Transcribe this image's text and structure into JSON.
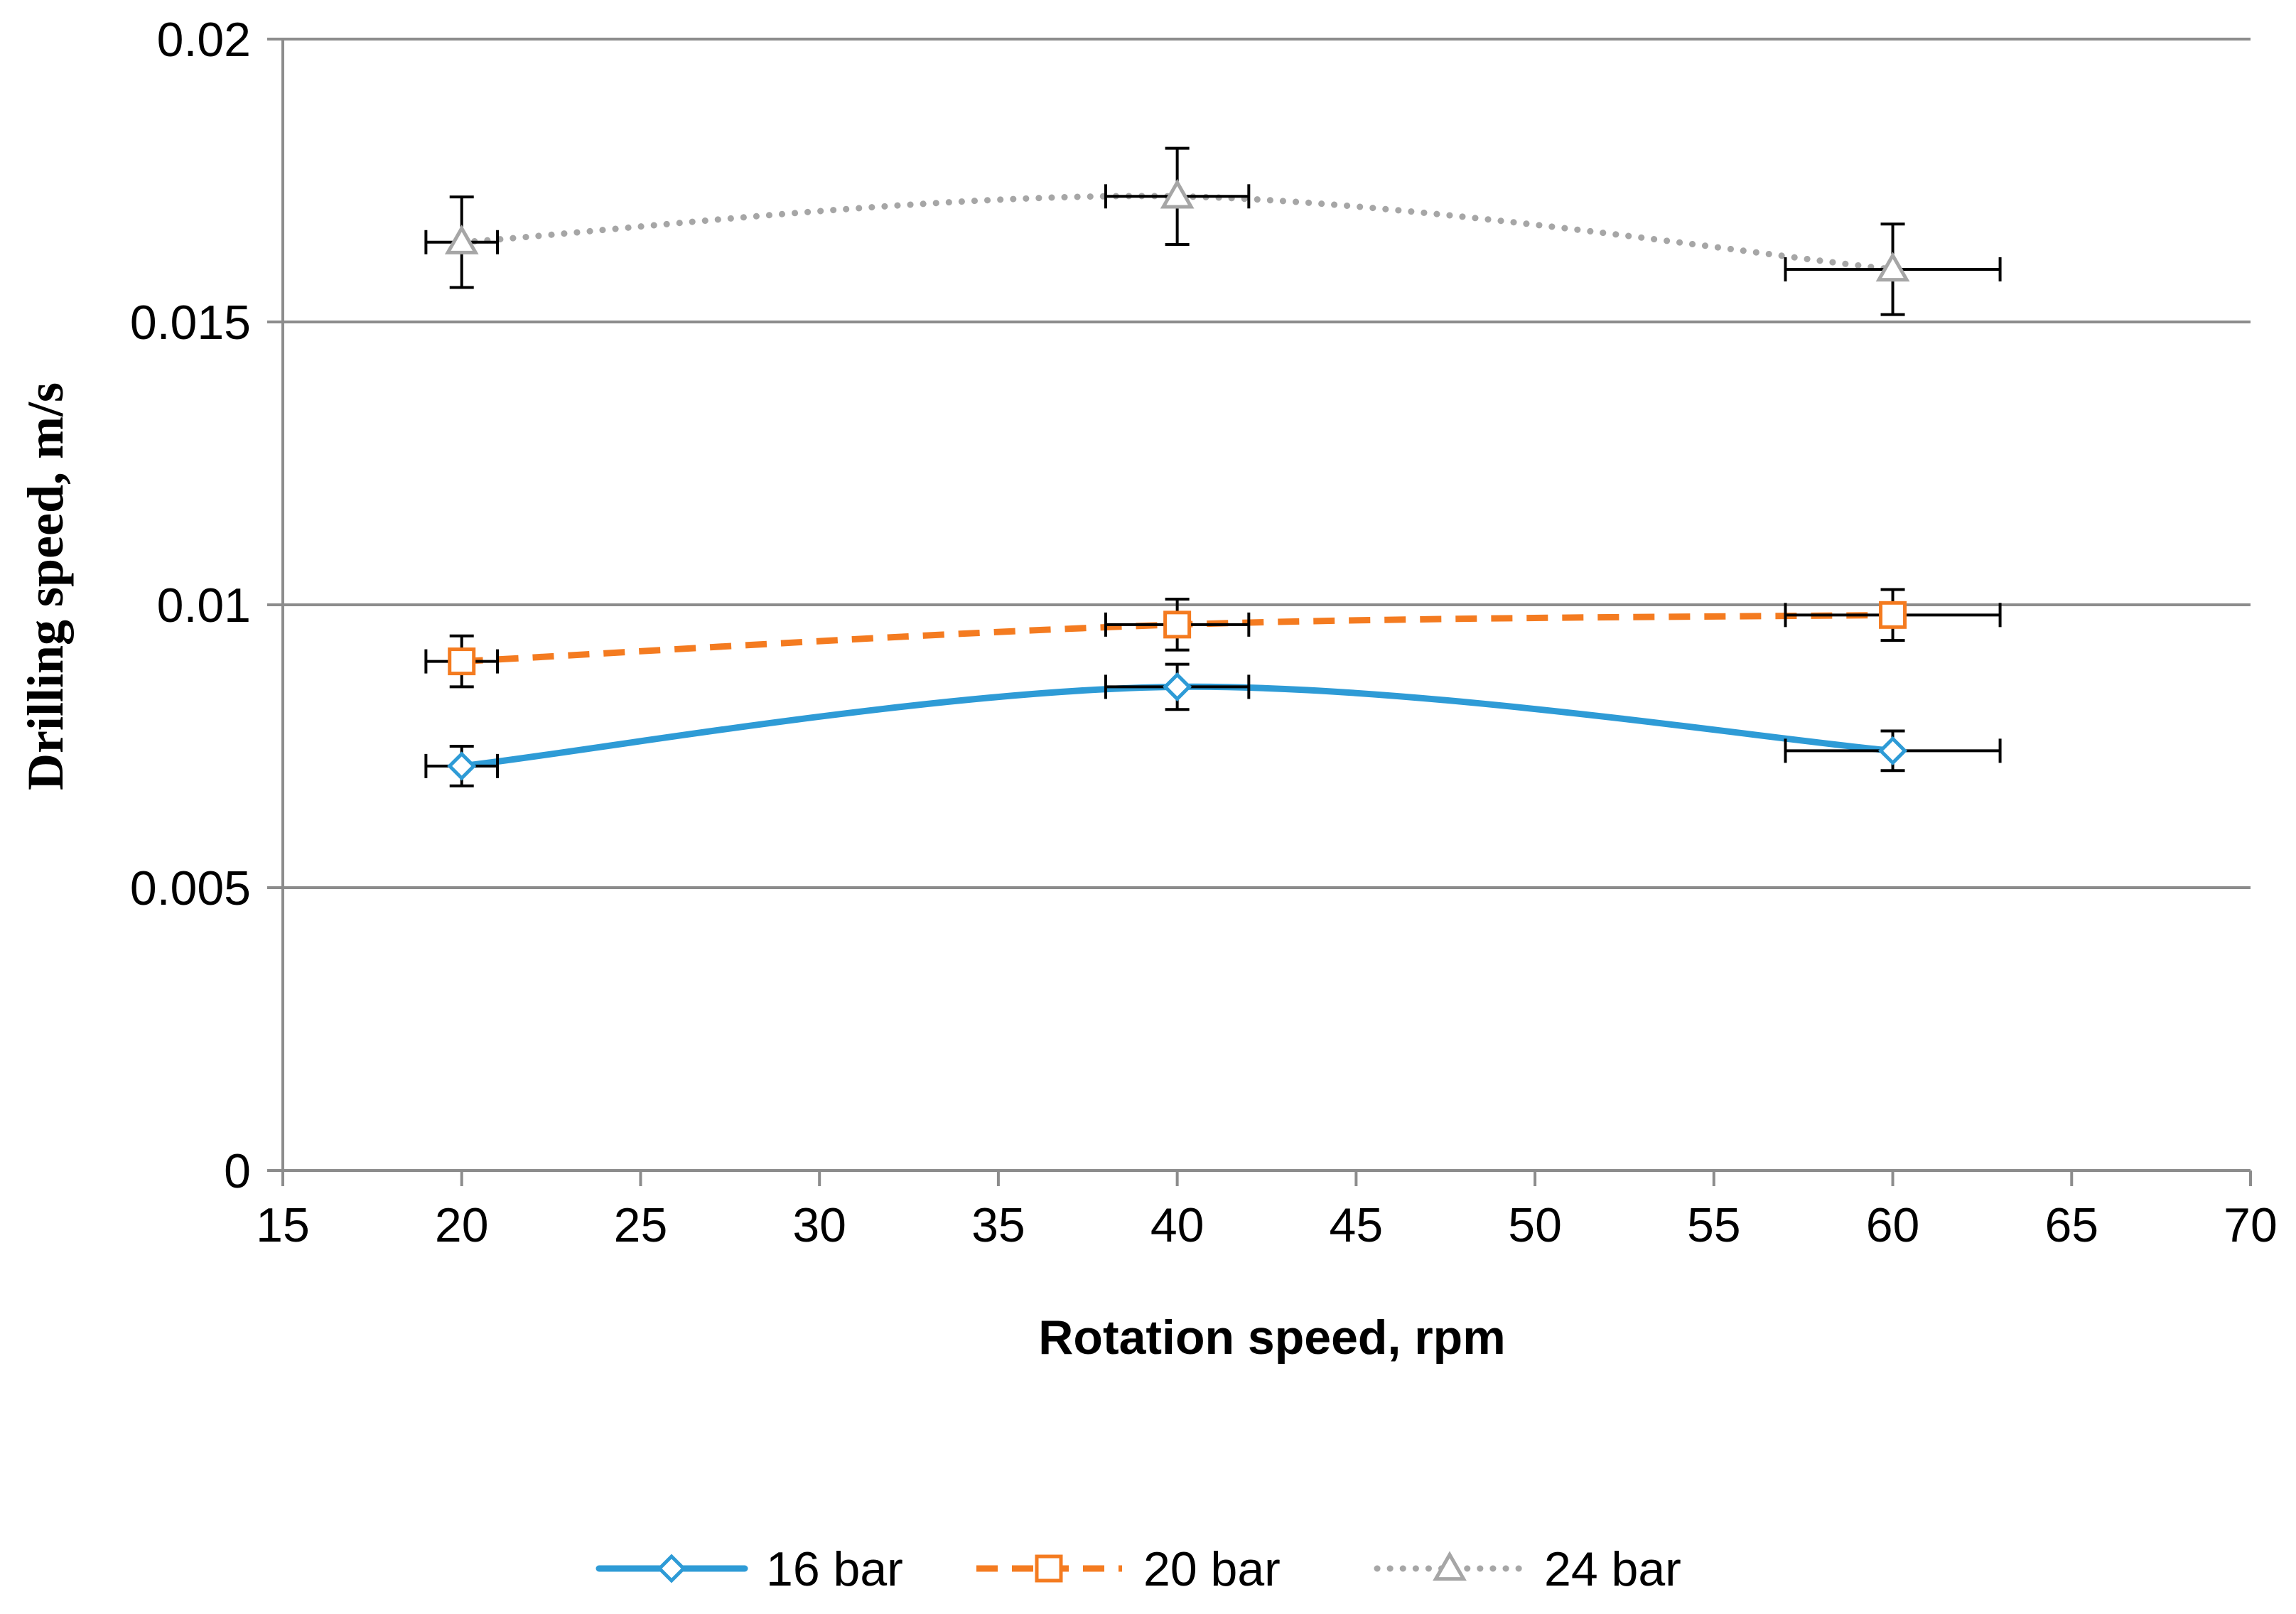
{
  "chart_data": {
    "type": "scatter",
    "title": "",
    "xlabel": "Rotation speed, rpm",
    "ylabel": "Drilling speed, m/s",
    "xlim": [
      15,
      70
    ],
    "ylim": [
      0,
      0.02
    ],
    "xticks": [
      15,
      20,
      25,
      30,
      35,
      40,
      45,
      50,
      55,
      60,
      65,
      70
    ],
    "xtick_labels": [
      "15",
      "20",
      "25",
      "30",
      "35",
      "40",
      "45",
      "50",
      "55",
      "60",
      "65",
      "70"
    ],
    "yticks": [
      0,
      0.005,
      0.01,
      0.015,
      0.02
    ],
    "ytick_labels": [
      "0",
      "0.005",
      "0.01",
      "0.015",
      "0.02"
    ],
    "grid": "horizontal",
    "legend_position": "bottom",
    "series": [
      {
        "name": "16 bar",
        "color": "#2E9BD6",
        "line_style": "solid",
        "marker": "diamond",
        "x": [
          20,
          40,
          60
        ],
        "y": [
          0.00715,
          0.00855,
          0.00742
        ],
        "y_err": [
          0.00035,
          0.0004,
          0.00035
        ],
        "x_err": [
          1,
          2,
          3
        ]
      },
      {
        "name": "20 bar",
        "color": "#F47B20",
        "line_style": "dashed",
        "marker": "square",
        "x": [
          20,
          40,
          60
        ],
        "y": [
          0.009,
          0.00965,
          0.00982
        ],
        "y_err": [
          0.00045,
          0.00045,
          0.00045
        ],
        "x_err": [
          1,
          2,
          3
        ]
      },
      {
        "name": "24 bar",
        "color": "#A6A6A6",
        "line_style": "dotted",
        "marker": "triangle",
        "x": [
          20,
          40,
          60
        ],
        "y": [
          0.01641,
          0.01722,
          0.01593
        ],
        "y_err": [
          0.0008,
          0.00085,
          0.0008
        ],
        "x_err": [
          1,
          2,
          3
        ]
      }
    ]
  }
}
